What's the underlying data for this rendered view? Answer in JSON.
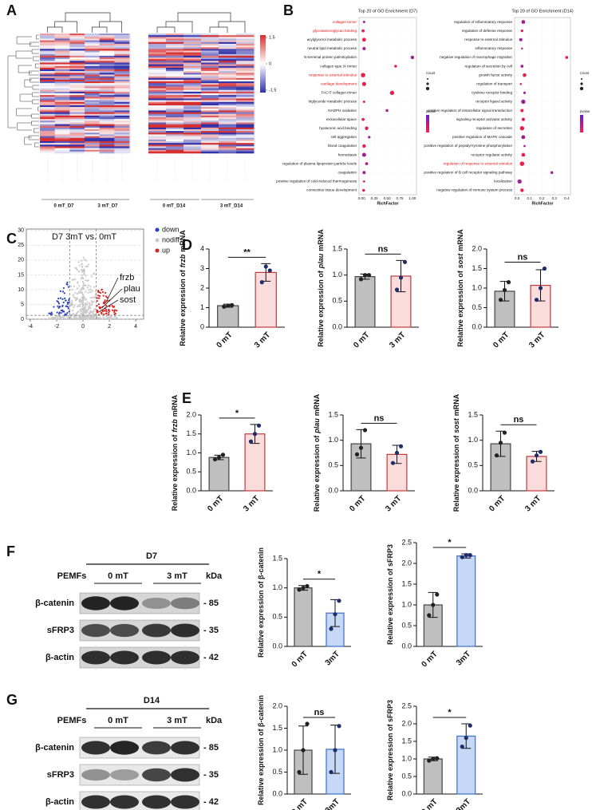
{
  "panel_letters": [
    "A",
    "B",
    "C",
    "D",
    "E",
    "F",
    "G"
  ],
  "heatmap": {
    "groups": [
      "0 mT_D7",
      "3 mT_D7",
      "0 mT_D14",
      "3 mT_D14"
    ],
    "colorbar_ticks": [
      1.5,
      0,
      -1.5
    ]
  },
  "go": [
    {
      "title": "Top 20 of GO Enrichment (D7)",
      "xlabel": "RichFactor",
      "xlim": [
        -0.05,
        1.08
      ],
      "xticks": [
        {
          "value": 0,
          "label": "0.00"
        },
        0.25,
        {
          "value": 0.5,
          "label": "0.50"
        },
        0.75,
        {
          "value": 1,
          "label": "1.00"
        }
      ],
      "terms": [
        "collagen trimer",
        "glycosaminoglycan binding",
        "acylglycerol metabolic process",
        "neutral lipid metabolic process",
        "N-terminal protein palmitoylation",
        "collagen type IX trimer",
        "response to external stimulus",
        "cartilage development",
        "FACIT collagen trimer",
        "triglyceride metabolic process",
        "NADPH oxidation",
        "extracellular space",
        "hyaluronic acid binding",
        "cell aggregation",
        "blood coagulation",
        "hemostasis",
        "regulation of plasma lipoprotein particle levels",
        "coagulation",
        "positive regulation of cold-induced thermogenesis",
        "connective tissue development"
      ],
      "highlight": [
        true,
        true,
        false,
        false,
        false,
        false,
        true,
        true,
        false,
        false,
        false,
        false,
        false,
        false,
        false,
        false,
        false,
        false,
        false,
        false
      ],
      "values": [
        0.05,
        0.03,
        0.05,
        0.05,
        1.0,
        0.67,
        0.03,
        0.05,
        0.6,
        0.05,
        0.5,
        0.03,
        0.1,
        0.15,
        0.05,
        0.05,
        0.1,
        0.05,
        0.05,
        0.04
      ],
      "legend": [
        "Count",
        "pvalue"
      ]
    },
    {
      "title": "Top 20 of GO Enrichment (D14)",
      "xlabel": "RichFactor",
      "xlim": [
        -0.02,
        0.43
      ],
      "xticks": [
        {
          "value": 0,
          "label": "0.0"
        },
        0.1,
        0.2,
        0.3,
        0.4
      ],
      "terms": [
        "regulation of inflammatory response",
        "regulation of defense response",
        "response to external stimulus",
        "inflammatory response",
        "negative regulation of macrophage migration",
        "regulation of secretion by cell",
        "growth factor activity",
        "regulation of transport",
        "cytokine receptor binding",
        "receptor ligand activity",
        "positive regulation of intracellular signal transduction",
        "signaling receptor activator activity",
        "regulation of secretion",
        "positive regulation of MAPK cascade",
        "positive regulation of peptidyl-tyrosine phosphorylation",
        "receptor regulator activity",
        "regulation of response to external stimulus",
        "positive regulation of B cell receptor signaling pathway",
        "localization",
        "negative regulation of immune system process"
      ],
      "highlight": [
        false,
        false,
        false,
        false,
        false,
        false,
        false,
        false,
        false,
        false,
        false,
        false,
        false,
        false,
        false,
        false,
        true,
        false,
        false,
        false
      ],
      "values": [
        0.05,
        0.04,
        0.03,
        0.04,
        0.4,
        0.04,
        0.06,
        0.03,
        0.06,
        0.05,
        0.04,
        0.05,
        0.04,
        0.05,
        0.06,
        0.05,
        0.04,
        0.28,
        0.02,
        0.04
      ],
      "legend": [
        "Count",
        "pvalue"
      ]
    }
  ],
  "volcano": {
    "title": "D7  3mT vs. 0mT",
    "xlim": [
      -4.3,
      4.6
    ],
    "ylim": [
      0,
      30.5
    ],
    "xticks": [
      -4,
      -2,
      0,
      2,
      4
    ],
    "yticks": [
      0,
      5,
      10,
      15,
      20,
      25,
      30
    ],
    "cutoff_x": [
      -1,
      1
    ],
    "cutoff_y": 1.3,
    "legend": [
      {
        "name": "down",
        "color": "#2b3fc4"
      },
      {
        "name": "nodiff",
        "color": "#c8c8c8"
      },
      {
        "name": "up",
        "color": "#e02020"
      }
    ],
    "genes": [
      "frzb",
      "plau",
      "sost"
    ],
    "x": [
      1.6,
      1.3,
      1.1
    ],
    "y": [
      5.5,
      3.8,
      2.5
    ]
  },
  "bars": [
    {
      "ylabel": "Relative expression of",
      "gene": "frzb",
      "ylabel_end": "mRNA",
      "categories": [
        "0 mT",
        "3 mT"
      ],
      "values": [
        1.1,
        2.8
      ],
      "errors": [
        0.08,
        0.45
      ],
      "points": [
        [
          1.05,
          1.1,
          1.13
        ],
        [
          2.3,
          3.1,
          2.9
        ]
      ],
      "ylim": [
        0,
        4
      ],
      "yticks": [
        0,
        1,
        2,
        3,
        4
      ],
      "significance": "**",
      "colors": [
        "#bfbfbf",
        "#fadcdc"
      ],
      "edges": [
        "#444444",
        "#c0393b"
      ]
    },
    {
      "ylabel": "Relative expression of",
      "gene": "plau",
      "ylabel_end": "mRNA",
      "categories": [
        "0 mT",
        "3 mT"
      ],
      "values": [
        0.97,
        0.98
      ],
      "errors": [
        0.05,
        0.3
      ],
      "points": [
        [
          0.92,
          1.0,
          1.0
        ],
        [
          0.72,
          0.95,
          1.25
        ]
      ],
      "ylim": [
        0,
        1.5
      ],
      "yticks": [
        {
          "value": 0,
          "label": "0.0"
        },
        0.5,
        {
          "value": 1,
          "label": "1.0"
        },
        1.5
      ],
      "significance": "ns",
      "colors": [
        "#bfbfbf",
        "#fadcdc"
      ],
      "edges": [
        "#444444",
        "#c0393b"
      ]
    },
    {
      "ylabel": "Relative expression of",
      "gene": "sost",
      "ylabel_end": "mRNA",
      "categories": [
        "0 mT",
        "3 mT"
      ],
      "values": [
        0.92,
        1.07
      ],
      "errors": [
        0.25,
        0.4
      ],
      "points": [
        [
          0.7,
          0.95,
          1.15
        ],
        [
          0.7,
          1.0,
          1.5
        ]
      ],
      "ylim": [
        0,
        2
      ],
      "yticks": [
        {
          "value": 0,
          "label": "0.0"
        },
        0.5,
        {
          "value": 1,
          "label": "1.0"
        },
        1.5,
        {
          "value": 2,
          "label": "2.0"
        }
      ],
      "significance": "ns",
      "colors": [
        "#bfbfbf",
        "#fadcdc"
      ],
      "edges": [
        "#444444",
        "#c0393b"
      ]
    },
    {
      "ylabel": "Relative expression of",
      "gene": "frzb",
      "ylabel_end": "mRNA",
      "categories": [
        "0 mT",
        "3 mT"
      ],
      "values": [
        0.88,
        1.5
      ],
      "errors": [
        0.06,
        0.25
      ],
      "points": [
        [
          0.83,
          0.88,
          0.95
        ],
        [
          1.3,
          1.5,
          1.72
        ]
      ],
      "ylim": [
        0,
        2
      ],
      "yticks": [
        {
          "value": 0,
          "label": "0.0"
        },
        0.5,
        {
          "value": 1,
          "label": "1.0"
        },
        1.5,
        {
          "value": 2,
          "label": "2.0"
        }
      ],
      "significance": "*",
      "colors": [
        "#bfbfbf",
        "#fadcdc"
      ],
      "edges": [
        "#444444",
        "#c0393b"
      ]
    },
    {
      "ylabel": "Relative expression of",
      "gene": "plau",
      "ylabel_end": "mRNA",
      "categories": [
        "0 mT",
        "3 mT"
      ],
      "values": [
        0.93,
        0.72
      ],
      "errors": [
        0.28,
        0.18
      ],
      "points": [
        [
          0.72,
          0.85,
          1.2
        ],
        [
          0.55,
          0.75,
          0.88
        ]
      ],
      "ylim": [
        0,
        1.5
      ],
      "yticks": [
        {
          "value": 0,
          "label": "0.0"
        },
        0.5,
        {
          "value": 1,
          "label": "1.0"
        },
        1.5
      ],
      "significance": "ns",
      "colors": [
        "#bfbfbf",
        "#fadcdc"
      ],
      "edges": [
        "#444444",
        "#c0393b"
      ]
    },
    {
      "ylabel": "Relative expression of",
      "gene": "sost",
      "ylabel_end": "mRNA",
      "categories": [
        "0 mT",
        "3 mT"
      ],
      "values": [
        0.93,
        0.68
      ],
      "errors": [
        0.25,
        0.1
      ],
      "points": [
        [
          0.7,
          0.95,
          1.15
        ],
        [
          0.58,
          0.7,
          0.77
        ]
      ],
      "ylim": [
        0,
        1.5
      ],
      "yticks": [
        {
          "value": 0,
          "label": "0.0"
        },
        0.5,
        {
          "value": 1,
          "label": "1.0"
        },
        1.5
      ],
      "significance": "ns",
      "colors": [
        "#bfbfbf",
        "#fadcdc"
      ],
      "edges": [
        "#444444",
        "#c0393b"
      ]
    },
    {
      "ylabel": "Relative expression of β-catenin",
      "categories": [
        "0 mT",
        "3mT"
      ],
      "values": [
        1.0,
        0.57
      ],
      "errors": [
        0.04,
        0.23
      ],
      "points": [
        [
          0.97,
          1.0,
          1.03
        ],
        [
          0.3,
          0.55,
          0.78
        ]
      ],
      "ylim": [
        0,
        1.5
      ],
      "yticks": [
        {
          "value": 0,
          "label": "0.0"
        },
        0.5,
        {
          "value": 1,
          "label": "1.0"
        },
        1.5
      ],
      "significance": "*",
      "colors": [
        "#bfbfbf",
        "#c6d8f5"
      ],
      "edges": [
        "#444444",
        "#3a6fc4"
      ]
    },
    {
      "ylabel": "Relative expression of sFRP3",
      "categories": [
        "0 mT",
        "3mT"
      ],
      "values": [
        1.0,
        2.18
      ],
      "errors": [
        0.3,
        0.05
      ],
      "points": [
        [
          0.75,
          1.0,
          1.25
        ],
        [
          2.15,
          2.2,
          2.2
        ]
      ],
      "ylim": [
        0,
        2.5
      ],
      "yticks": [
        {
          "value": 0,
          "label": "0.0"
        },
        0.5,
        {
          "value": 1,
          "label": "1.0"
        },
        1.5,
        {
          "value": 2,
          "label": "2.0"
        },
        2.5
      ],
      "significance": "*",
      "colors": [
        "#bfbfbf",
        "#c6d8f5"
      ],
      "edges": [
        "#444444",
        "#3a6fc4"
      ]
    },
    {
      "ylabel": "Relative expression of β-catenin",
      "categories": [
        "0 mT",
        "3mT"
      ],
      "values": [
        1.0,
        1.02
      ],
      "errors": [
        0.55,
        0.55
      ],
      "points": [
        [
          0.5,
          1.0,
          1.6
        ],
        [
          0.5,
          1.0,
          1.55
        ]
      ],
      "ylim": [
        0,
        2
      ],
      "yticks": [
        {
          "value": 0,
          "label": "0.0"
        },
        0.5,
        {
          "value": 1,
          "label": "1.0"
        },
        1.5,
        {
          "value": 2,
          "label": "2.0"
        }
      ],
      "significance": "ns",
      "colors": [
        "#bfbfbf",
        "#c6d8f5"
      ],
      "edges": [
        "#444444",
        "#3a6fc4"
      ]
    },
    {
      "ylabel": "Relative expression of sFRP3",
      "categories": [
        "0 mT",
        "3mT"
      ],
      "values": [
        1.0,
        1.65
      ],
      "errors": [
        0.05,
        0.35
      ],
      "points": [
        [
          0.95,
          1.0,
          1.02
        ],
        [
          1.35,
          1.6,
          1.95
        ]
      ],
      "ylim": [
        0,
        2.5
      ],
      "yticks": [
        {
          "value": 0,
          "label": "0.0"
        },
        0.5,
        {
          "value": 1,
          "label": "1.0"
        },
        1.5,
        {
          "value": 2,
          "label": "2.0"
        },
        2.5
      ],
      "significance": "*",
      "colors": [
        "#bfbfbf",
        "#c6d8f5"
      ],
      "edges": [
        "#444444",
        "#3a6fc4"
      ]
    }
  ],
  "blots": [
    {
      "title": "D7",
      "group_label": "PEMFs",
      "groups": [
        "0 mT",
        "3 mT"
      ],
      "unit": "kDa",
      "proteins": [
        "β-catenin",
        "sFRP3",
        "β-actin"
      ],
      "markers": [
        "- 85",
        "- 35",
        "- 42"
      ]
    },
    {
      "title": "D14",
      "group_label": "PEMFs",
      "groups": [
        "0 mT",
        "3 mT"
      ],
      "unit": "kDa",
      "proteins": [
        "β-catenin",
        "sFRP3",
        "β-actin"
      ],
      "markers": [
        "- 85",
        "- 35",
        "- 42"
      ]
    }
  ]
}
